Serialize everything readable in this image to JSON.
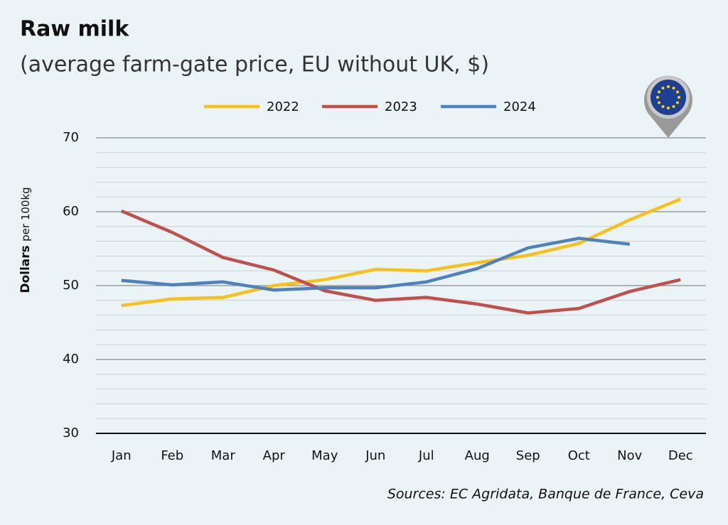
{
  "chart_data": {
    "type": "line",
    "title": "Raw milk",
    "subtitle": "(average farm-gate price, EU without UK, $)",
    "y_label": "Dollars",
    "y_label_unit": "per 100kg",
    "source": "Sources: EC Agridata, Banque de France, Ceva",
    "categories": [
      "Jan",
      "Feb",
      "Mar",
      "Apr",
      "May",
      "Jun",
      "Jul",
      "Aug",
      "Sep",
      "Oct",
      "Nov",
      "Dec"
    ],
    "series": [
      {
        "name": "2022",
        "color": "#f8c01a",
        "values": [
          47.3,
          48.2,
          48.4,
          50.0,
          50.8,
          52.2,
          52.0,
          53.1,
          54.1,
          55.7,
          58.9,
          61.7
        ]
      },
      {
        "name": "2023",
        "color": "#c0504d",
        "values": [
          60.1,
          57.2,
          53.8,
          52.1,
          49.3,
          48.0,
          48.4,
          47.5,
          46.3,
          46.9,
          49.2,
          50.8
        ]
      },
      {
        "name": "2024",
        "color": "#4f81bd",
        "values": [
          50.7,
          50.1,
          50.5,
          49.4,
          49.7,
          49.7,
          50.5,
          52.3,
          55.1,
          56.4,
          55.6,
          null
        ]
      }
    ],
    "ylim": [
      30,
      70
    ],
    "yticks": [
      30,
      40,
      50,
      60,
      70
    ],
    "minor_yticks": [
      32,
      34,
      36,
      38,
      42,
      44,
      46,
      48,
      52,
      54,
      56,
      58,
      62,
      64,
      66,
      68
    ],
    "grid": true,
    "legend": "top"
  }
}
